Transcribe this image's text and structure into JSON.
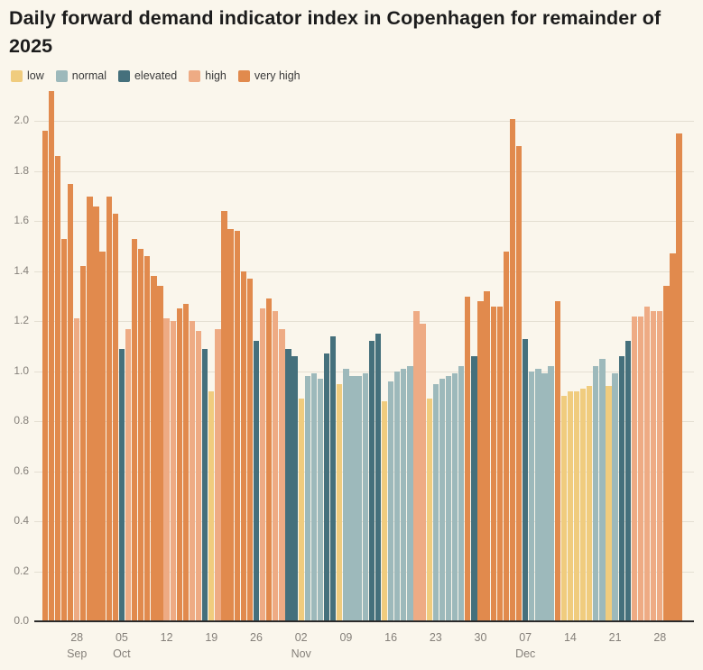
{
  "title": "Daily forward demand indicator index in Copenhagen for remainder of 2025",
  "colors": {
    "low": "#f0cc7e",
    "normal": "#9db9bb",
    "elevated": "#45707c",
    "high": "#eeab84",
    "very_high": "#e18a4d",
    "background": "#faf6ec",
    "grid_line": "#e4dfd2",
    "axis_line": "#2b2b2b",
    "tick_text": "#85807a",
    "title_text": "#1c1c1c"
  },
  "legend": {
    "items": [
      {
        "label": "low",
        "key": "low"
      },
      {
        "label": "normal",
        "key": "normal"
      },
      {
        "label": "elevated",
        "key": "elevated"
      },
      {
        "label": "high",
        "key": "high"
      },
      {
        "label": "very high",
        "key": "very_high"
      }
    ]
  },
  "chart_data": {
    "type": "bar",
    "title": "Daily forward demand indicator index in Copenhagen for remainder of 2025",
    "xlabel": "",
    "ylabel": "",
    "ylim": [
      0,
      2.2
    ],
    "yticks": [
      "0.0",
      "0.2",
      "0.4",
      "0.6",
      "0.8",
      "1.0",
      "1.2",
      "1.4",
      "1.6",
      "1.8",
      "2.0"
    ],
    "grid": "horizontal",
    "legend_position": "top-left",
    "x_unit": "day",
    "date_range": "Sep 23 - Dec 31, 2025",
    "levels_order": [
      "low",
      "normal",
      "elevated",
      "high",
      "very high"
    ],
    "x_ticks": [
      {
        "bar_index": 5,
        "day": "28",
        "month": "Sep"
      },
      {
        "bar_index": 12,
        "day": "05",
        "month": "Oct"
      },
      {
        "bar_index": 19,
        "day": "12",
        "month": ""
      },
      {
        "bar_index": 26,
        "day": "19",
        "month": ""
      },
      {
        "bar_index": 33,
        "day": "26",
        "month": ""
      },
      {
        "bar_index": 40,
        "day": "02",
        "month": "Nov"
      },
      {
        "bar_index": 47,
        "day": "09",
        "month": ""
      },
      {
        "bar_index": 54,
        "day": "16",
        "month": ""
      },
      {
        "bar_index": 61,
        "day": "23",
        "month": ""
      },
      {
        "bar_index": 68,
        "day": "30",
        "month": ""
      },
      {
        "bar_index": 75,
        "day": "07",
        "month": "Dec"
      },
      {
        "bar_index": 82,
        "day": "14",
        "month": ""
      },
      {
        "bar_index": 89,
        "day": "21",
        "month": ""
      },
      {
        "bar_index": 96,
        "day": "28",
        "month": ""
      }
    ],
    "bars": [
      {
        "date": "Sep 23",
        "value": 1.96,
        "level": "very high"
      },
      {
        "date": "Sep 24",
        "value": 2.12,
        "level": "very high"
      },
      {
        "date": "Sep 25",
        "value": 1.86,
        "level": "very high"
      },
      {
        "date": "Sep 26",
        "value": 1.53,
        "level": "very high"
      },
      {
        "date": "Sep 27",
        "value": 1.75,
        "level": "very high"
      },
      {
        "date": "Sep 28",
        "value": 1.21,
        "level": "high"
      },
      {
        "date": "Sep 29",
        "value": 1.42,
        "level": "very high"
      },
      {
        "date": "Sep 30",
        "value": 1.7,
        "level": "very high"
      },
      {
        "date": "Oct 01",
        "value": 1.66,
        "level": "very high"
      },
      {
        "date": "Oct 02",
        "value": 1.48,
        "level": "very high"
      },
      {
        "date": "Oct 03",
        "value": 1.7,
        "level": "very high"
      },
      {
        "date": "Oct 04",
        "value": 1.63,
        "level": "very high"
      },
      {
        "date": "Oct 05",
        "value": 1.09,
        "level": "elevated"
      },
      {
        "date": "Oct 06",
        "value": 1.17,
        "level": "high"
      },
      {
        "date": "Oct 07",
        "value": 1.53,
        "level": "very high"
      },
      {
        "date": "Oct 08",
        "value": 1.49,
        "level": "very high"
      },
      {
        "date": "Oct 09",
        "value": 1.46,
        "level": "very high"
      },
      {
        "date": "Oct 10",
        "value": 1.38,
        "level": "very high"
      },
      {
        "date": "Oct 11",
        "value": 1.34,
        "level": "very high"
      },
      {
        "date": "Oct 12",
        "value": 1.21,
        "level": "high"
      },
      {
        "date": "Oct 13",
        "value": 1.2,
        "level": "high"
      },
      {
        "date": "Oct 14",
        "value": 1.25,
        "level": "very high"
      },
      {
        "date": "Oct 15",
        "value": 1.27,
        "level": "very high"
      },
      {
        "date": "Oct 16",
        "value": 1.2,
        "level": "high"
      },
      {
        "date": "Oct 17",
        "value": 1.16,
        "level": "high"
      },
      {
        "date": "Oct 18",
        "value": 1.09,
        "level": "elevated"
      },
      {
        "date": "Oct 19",
        "value": 0.92,
        "level": "low"
      },
      {
        "date": "Oct 20",
        "value": 1.17,
        "level": "high"
      },
      {
        "date": "Oct 21",
        "value": 1.64,
        "level": "very high"
      },
      {
        "date": "Oct 22",
        "value": 1.57,
        "level": "very high"
      },
      {
        "date": "Oct 23",
        "value": 1.56,
        "level": "very high"
      },
      {
        "date": "Oct 24",
        "value": 1.4,
        "level": "very high"
      },
      {
        "date": "Oct 25",
        "value": 1.37,
        "level": "very high"
      },
      {
        "date": "Oct 26",
        "value": 1.12,
        "level": "elevated"
      },
      {
        "date": "Oct 27",
        "value": 1.25,
        "level": "high"
      },
      {
        "date": "Oct 28",
        "value": 1.29,
        "level": "very high"
      },
      {
        "date": "Oct 29",
        "value": 1.24,
        "level": "high"
      },
      {
        "date": "Oct 30",
        "value": 1.17,
        "level": "high"
      },
      {
        "date": "Oct 31",
        "value": 1.09,
        "level": "elevated"
      },
      {
        "date": "Nov 01",
        "value": 1.06,
        "level": "elevated"
      },
      {
        "date": "Nov 02",
        "value": 0.89,
        "level": "low"
      },
      {
        "date": "Nov 03",
        "value": 0.98,
        "level": "normal"
      },
      {
        "date": "Nov 04",
        "value": 0.99,
        "level": "normal"
      },
      {
        "date": "Nov 05",
        "value": 0.97,
        "level": "normal"
      },
      {
        "date": "Nov 06",
        "value": 1.07,
        "level": "elevated"
      },
      {
        "date": "Nov 07",
        "value": 1.14,
        "level": "elevated"
      },
      {
        "date": "Nov 08",
        "value": 0.95,
        "level": "low"
      },
      {
        "date": "Nov 09",
        "value": 1.01,
        "level": "normal"
      },
      {
        "date": "Nov 10",
        "value": 0.98,
        "level": "normal"
      },
      {
        "date": "Nov 11",
        "value": 0.98,
        "level": "normal"
      },
      {
        "date": "Nov 12",
        "value": 0.99,
        "level": "normal"
      },
      {
        "date": "Nov 13",
        "value": 1.12,
        "level": "elevated"
      },
      {
        "date": "Nov 14",
        "value": 1.15,
        "level": "elevated"
      },
      {
        "date": "Nov 15",
        "value": 0.88,
        "level": "low"
      },
      {
        "date": "Nov 16",
        "value": 0.96,
        "level": "normal"
      },
      {
        "date": "Nov 17",
        "value": 1.0,
        "level": "normal"
      },
      {
        "date": "Nov 18",
        "value": 1.01,
        "level": "normal"
      },
      {
        "date": "Nov 19",
        "value": 1.02,
        "level": "normal"
      },
      {
        "date": "Nov 20",
        "value": 1.24,
        "level": "high"
      },
      {
        "date": "Nov 21",
        "value": 1.19,
        "level": "high"
      },
      {
        "date": "Nov 22",
        "value": 0.89,
        "level": "low"
      },
      {
        "date": "Nov 23",
        "value": 0.95,
        "level": "normal"
      },
      {
        "date": "Nov 24",
        "value": 0.97,
        "level": "normal"
      },
      {
        "date": "Nov 25",
        "value": 0.98,
        "level": "normal"
      },
      {
        "date": "Nov 26",
        "value": 0.99,
        "level": "normal"
      },
      {
        "date": "Nov 27",
        "value": 1.02,
        "level": "normal"
      },
      {
        "date": "Nov 28",
        "value": 1.3,
        "level": "very high"
      },
      {
        "date": "Nov 29",
        "value": 1.06,
        "level": "elevated"
      },
      {
        "date": "Nov 30",
        "value": 1.28,
        "level": "very high"
      },
      {
        "date": "Dec 01",
        "value": 1.32,
        "level": "very high"
      },
      {
        "date": "Dec 02",
        "value": 1.26,
        "level": "very high"
      },
      {
        "date": "Dec 03",
        "value": 1.26,
        "level": "very high"
      },
      {
        "date": "Dec 04",
        "value": 1.48,
        "level": "very high"
      },
      {
        "date": "Dec 05",
        "value": 2.01,
        "level": "very high"
      },
      {
        "date": "Dec 06",
        "value": 1.9,
        "level": "very high"
      },
      {
        "date": "Dec 07",
        "value": 1.13,
        "level": "elevated"
      },
      {
        "date": "Dec 08",
        "value": 1.0,
        "level": "normal"
      },
      {
        "date": "Dec 09",
        "value": 1.01,
        "level": "normal"
      },
      {
        "date": "Dec 10",
        "value": 0.99,
        "level": "normal"
      },
      {
        "date": "Dec 11",
        "value": 1.02,
        "level": "normal"
      },
      {
        "date": "Dec 12",
        "value": 1.28,
        "level": "very high"
      },
      {
        "date": "Dec 13",
        "value": 0.9,
        "level": "low"
      },
      {
        "date": "Dec 14",
        "value": 0.92,
        "level": "low"
      },
      {
        "date": "Dec 15",
        "value": 0.92,
        "level": "low"
      },
      {
        "date": "Dec 16",
        "value": 0.93,
        "level": "low"
      },
      {
        "date": "Dec 17",
        "value": 0.94,
        "level": "low"
      },
      {
        "date": "Dec 18",
        "value": 1.02,
        "level": "normal"
      },
      {
        "date": "Dec 19",
        "value": 1.05,
        "level": "normal"
      },
      {
        "date": "Dec 20",
        "value": 0.94,
        "level": "low"
      },
      {
        "date": "Dec 21",
        "value": 0.99,
        "level": "normal"
      },
      {
        "date": "Dec 22",
        "value": 1.06,
        "level": "elevated"
      },
      {
        "date": "Dec 23",
        "value": 1.12,
        "level": "elevated"
      },
      {
        "date": "Dec 24",
        "value": 1.22,
        "level": "high"
      },
      {
        "date": "Dec 25",
        "value": 1.22,
        "level": "high"
      },
      {
        "date": "Dec 26",
        "value": 1.26,
        "level": "high"
      },
      {
        "date": "Dec 27",
        "value": 1.24,
        "level": "high"
      },
      {
        "date": "Dec 28",
        "value": 1.24,
        "level": "high"
      },
      {
        "date": "Dec 29",
        "value": 1.34,
        "level": "very high"
      },
      {
        "date": "Dec 30",
        "value": 1.47,
        "level": "very high"
      },
      {
        "date": "Dec 31",
        "value": 1.95,
        "level": "very high"
      }
    ]
  }
}
